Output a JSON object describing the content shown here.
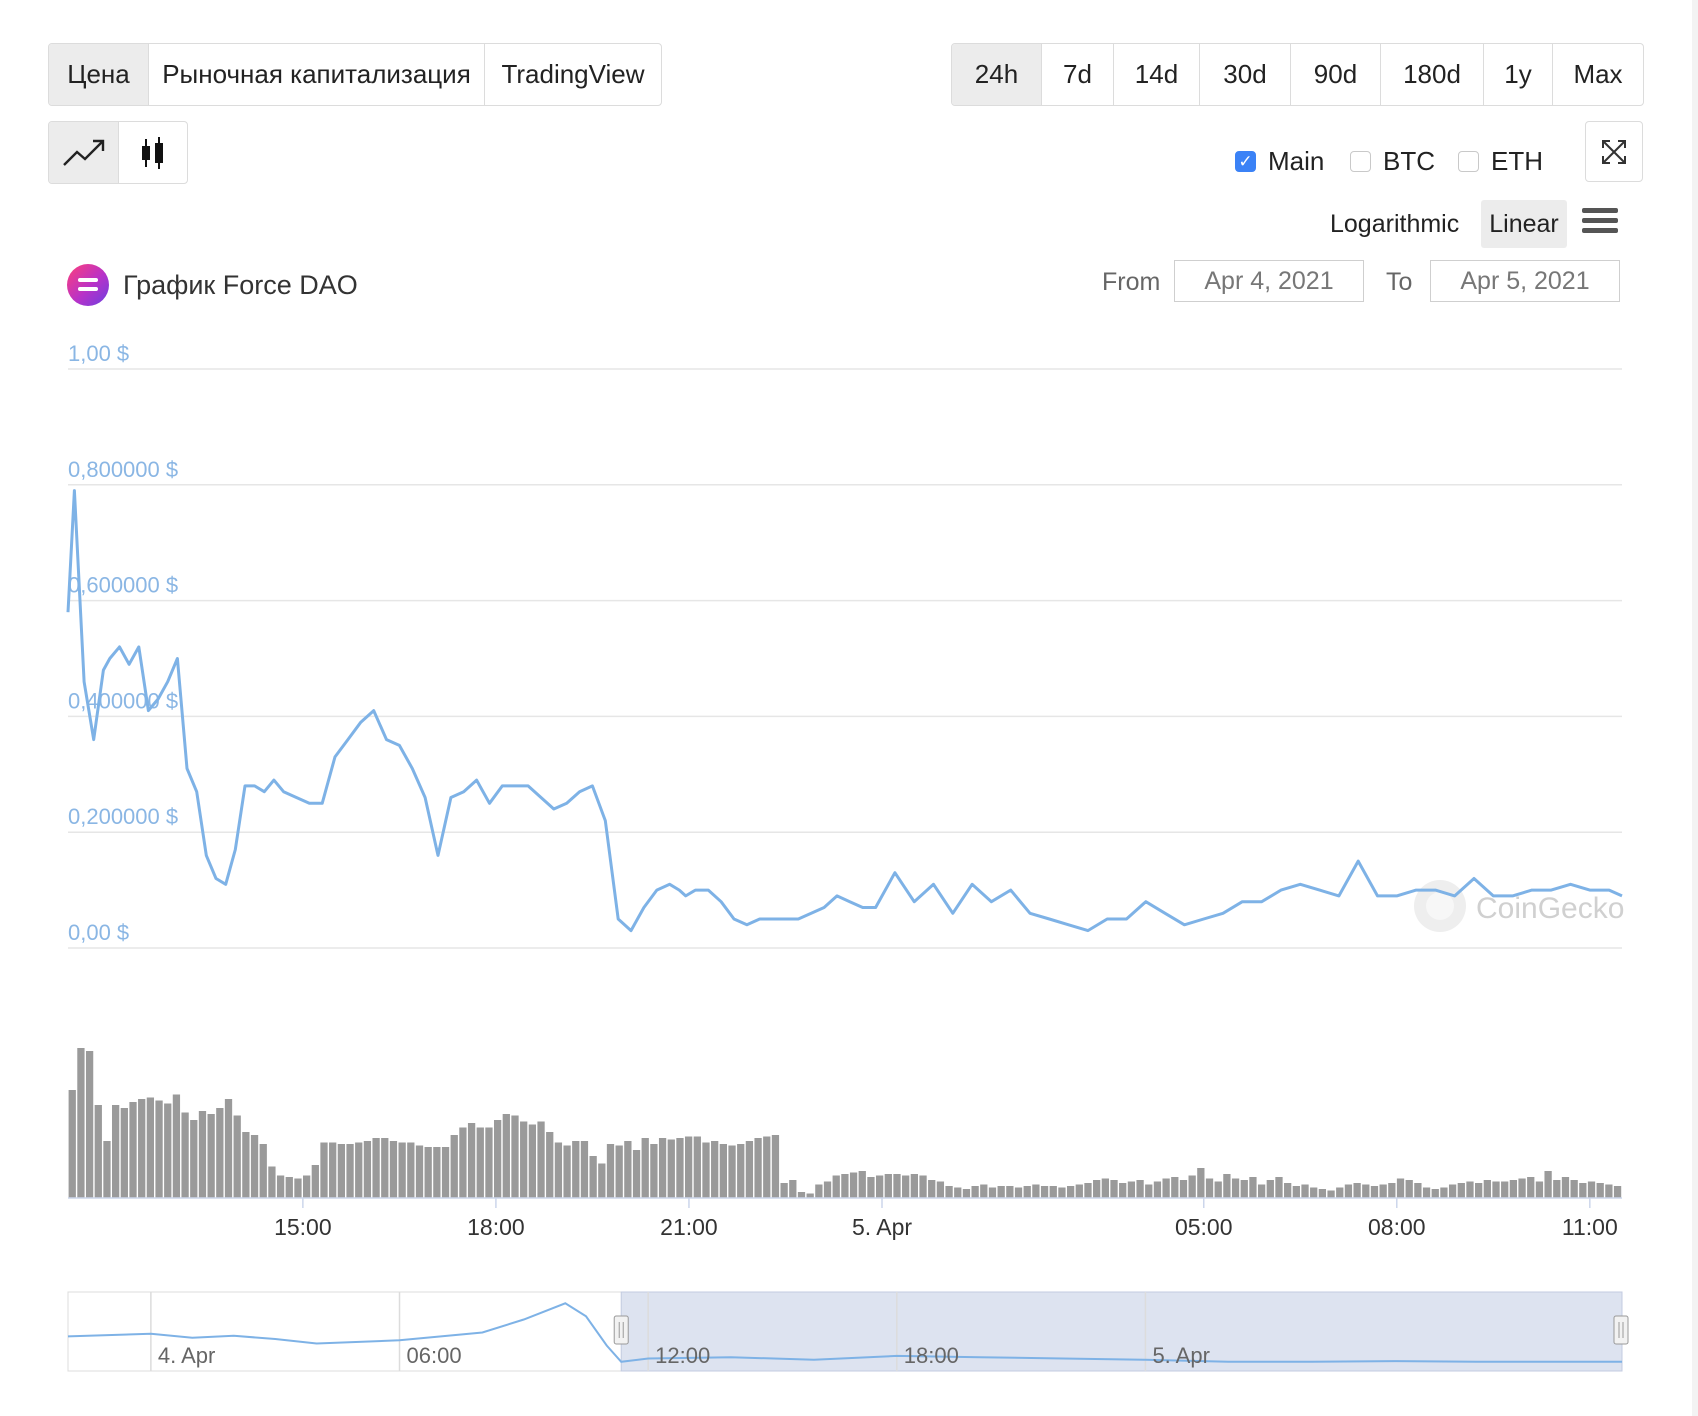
{
  "tabs": [
    {
      "label": "Цена",
      "active": true
    },
    {
      "label": "Рыночная капитализация",
      "active": false
    },
    {
      "label": "TradingView",
      "active": false
    }
  ],
  "ranges": [
    {
      "label": "24h",
      "active": true
    },
    {
      "label": "7d",
      "active": false
    },
    {
      "label": "14d",
      "active": false
    },
    {
      "label": "30d",
      "active": false
    },
    {
      "label": "90d",
      "active": false
    },
    {
      "label": "180d",
      "active": false
    },
    {
      "label": "1y",
      "active": false
    },
    {
      "label": "Max",
      "active": false
    }
  ],
  "chart_types": [
    {
      "icon": "line-chart-icon",
      "active": true
    },
    {
      "icon": "candlestick-icon",
      "active": false
    }
  ],
  "series_toggles": [
    {
      "label": "Main",
      "checked": true
    },
    {
      "label": "BTC",
      "checked": false
    },
    {
      "label": "ETH",
      "checked": false
    }
  ],
  "scale": {
    "log_label": "Logarithmic",
    "linear_label": "Linear",
    "active": "linear"
  },
  "title": "График Force DAO",
  "date_range": {
    "from_label": "From",
    "from_value": "Apr 4, 2021",
    "to_label": "To",
    "to_value": "Apr 5, 2021"
  },
  "watermark": "CoinGecko",
  "colors": {
    "line": "#7eb2e6",
    "volume": "#9a9a9a",
    "axis_label": "#8ab6e4",
    "navigator_fill": "#dde3f0",
    "active_button": "#ececec"
  },
  "chart_data": {
    "type": "line",
    "title": "График Force DAO",
    "y_tick_labels": [
      "0,00 $",
      "0,200000 $",
      "0,400000 $",
      "0,600000 $",
      "0,800000 $",
      "1,00 $"
    ],
    "ylim": [
      0,
      1
    ],
    "x_tick_labels": [
      "15:00",
      "18:00",
      "21:00",
      "5. Apr",
      "05:00",
      "08:00",
      "11:00"
    ],
    "x_tick_hours": [
      15,
      18,
      21,
      24,
      29,
      32,
      35
    ],
    "xlim_hours": [
      11.35,
      35.5
    ],
    "grid": true,
    "series": [
      {
        "x_hours": [
          11.35,
          11.45,
          11.6,
          11.75,
          11.9,
          12.0,
          12.15,
          12.3,
          12.45,
          12.6,
          12.75,
          12.9,
          13.05,
          13.2,
          13.35,
          13.5,
          13.65,
          13.8,
          13.95,
          14.1,
          14.25,
          14.4,
          14.55,
          14.7,
          14.9,
          15.1,
          15.3,
          15.5,
          15.7,
          15.9,
          16.1,
          16.3,
          16.5,
          16.7,
          16.9,
          17.1,
          17.3,
          17.5,
          17.7,
          17.9,
          18.1,
          18.3,
          18.5,
          18.7,
          18.9,
          19.1,
          19.3,
          19.5,
          19.7,
          19.9,
          20.1,
          20.3,
          20.5,
          20.7,
          20.85,
          20.95,
          21.1,
          21.3,
          21.5,
          21.7,
          21.9,
          22.1,
          22.3,
          22.5,
          22.7,
          22.9,
          23.1,
          23.3,
          23.5,
          23.7,
          23.9,
          24.2,
          24.5,
          24.8,
          25.1,
          25.4,
          25.7,
          26.0,
          26.3,
          26.6,
          26.9,
          27.2,
          27.5,
          27.8,
          28.1,
          28.4,
          28.7,
          29.0,
          29.3,
          29.6,
          29.9,
          30.2,
          30.5,
          30.8,
          31.1,
          31.4,
          31.7,
          32.0,
          32.3,
          32.6,
          32.9,
          33.2,
          33.5,
          33.8,
          34.1,
          34.4,
          34.7,
          35.0,
          35.3,
          35.5
        ],
        "values": [
          0.58,
          0.79,
          0.46,
          0.36,
          0.48,
          0.5,
          0.52,
          0.49,
          0.52,
          0.41,
          0.43,
          0.46,
          0.5,
          0.31,
          0.27,
          0.16,
          0.12,
          0.11,
          0.17,
          0.28,
          0.28,
          0.27,
          0.29,
          0.27,
          0.26,
          0.25,
          0.25,
          0.33,
          0.36,
          0.39,
          0.41,
          0.36,
          0.35,
          0.31,
          0.26,
          0.16,
          0.26,
          0.27,
          0.29,
          0.25,
          0.28,
          0.28,
          0.28,
          0.26,
          0.24,
          0.25,
          0.27,
          0.28,
          0.22,
          0.05,
          0.03,
          0.07,
          0.1,
          0.11,
          0.1,
          0.09,
          0.1,
          0.1,
          0.08,
          0.05,
          0.04,
          0.05,
          0.05,
          0.05,
          0.05,
          0.06,
          0.07,
          0.09,
          0.08,
          0.07,
          0.07,
          0.13,
          0.08,
          0.11,
          0.06,
          0.11,
          0.08,
          0.1,
          0.06,
          0.05,
          0.04,
          0.03,
          0.05,
          0.05,
          0.08,
          0.06,
          0.04,
          0.05,
          0.06,
          0.08,
          0.08,
          0.1,
          0.11,
          0.1,
          0.09,
          0.15,
          0.09,
          0.09,
          0.1,
          0.1,
          0.09,
          0.12,
          0.09,
          0.09,
          0.1,
          0.1,
          0.11,
          0.1,
          0.1,
          0.09
        ]
      }
    ],
    "volume": [
      0.72,
      1.0,
      0.98,
      0.62,
      0.38,
      0.62,
      0.6,
      0.64,
      0.66,
      0.67,
      0.65,
      0.63,
      0.69,
      0.57,
      0.52,
      0.58,
      0.56,
      0.6,
      0.66,
      0.55,
      0.44,
      0.42,
      0.36,
      0.21,
      0.15,
      0.14,
      0.13,
      0.15,
      0.22,
      0.37,
      0.37,
      0.36,
      0.36,
      0.37,
      0.38,
      0.4,
      0.4,
      0.38,
      0.37,
      0.37,
      0.35,
      0.34,
      0.34,
      0.34,
      0.42,
      0.47,
      0.5,
      0.47,
      0.47,
      0.52,
      0.56,
      0.55,
      0.51,
      0.49,
      0.51,
      0.44,
      0.37,
      0.35,
      0.38,
      0.38,
      0.28,
      0.23,
      0.36,
      0.35,
      0.38,
      0.32,
      0.4,
      0.36,
      0.4,
      0.39,
      0.4,
      0.41,
      0.41,
      0.37,
      0.38,
      0.36,
      0.35,
      0.36,
      0.38,
      0.4,
      0.41,
      0.42,
      0.1,
      0.12,
      0.04,
      0.03,
      0.09,
      0.11,
      0.15,
      0.16,
      0.17,
      0.18,
      0.14,
      0.15,
      0.16,
      0.16,
      0.15,
      0.16,
      0.15,
      0.12,
      0.11,
      0.08,
      0.07,
      0.06,
      0.08,
      0.09,
      0.07,
      0.08,
      0.08,
      0.07,
      0.08,
      0.09,
      0.08,
      0.08,
      0.07,
      0.08,
      0.09,
      0.1,
      0.12,
      0.13,
      0.12,
      0.1,
      0.11,
      0.12,
      0.09,
      0.11,
      0.13,
      0.14,
      0.12,
      0.15,
      0.2,
      0.13,
      0.11,
      0.16,
      0.13,
      0.12,
      0.14,
      0.09,
      0.12,
      0.14,
      0.1,
      0.08,
      0.09,
      0.07,
      0.06,
      0.05,
      0.07,
      0.09,
      0.1,
      0.09,
      0.08,
      0.09,
      0.1,
      0.13,
      0.12,
      0.1,
      0.07,
      0.06,
      0.07,
      0.09,
      0.1,
      0.11,
      0.1,
      0.12,
      0.11,
      0.11,
      0.12,
      0.13,
      0.14,
      0.11,
      0.18,
      0.12,
      0.14,
      0.12,
      0.1,
      0.11,
      0.1,
      0.09,
      0.08
    ],
    "navigator": {
      "x_tick_labels": [
        "4. Apr",
        "06:00",
        "12:00",
        "18:00",
        "5. Apr"
      ],
      "x_tick_hours": [
        0,
        6,
        12,
        18,
        24
      ],
      "xlim_hours": [
        -2,
        35.5
      ],
      "selection_hours": [
        11.35,
        35.5
      ],
      "x_hours": [
        -2,
        0,
        1,
        2,
        3,
        4,
        6,
        8,
        9,
        10,
        10.5,
        11,
        11.35,
        12,
        14,
        16,
        18,
        20,
        22,
        24,
        26,
        28,
        30,
        32,
        35.5
      ],
      "values": [
        0.44,
        0.48,
        0.42,
        0.45,
        0.4,
        0.33,
        0.38,
        0.5,
        0.7,
        0.95,
        0.75,
        0.3,
        0.05,
        0.1,
        0.12,
        0.08,
        0.14,
        0.12,
        0.1,
        0.08,
        0.05,
        0.05,
        0.06,
        0.05,
        0.05
      ]
    }
  }
}
